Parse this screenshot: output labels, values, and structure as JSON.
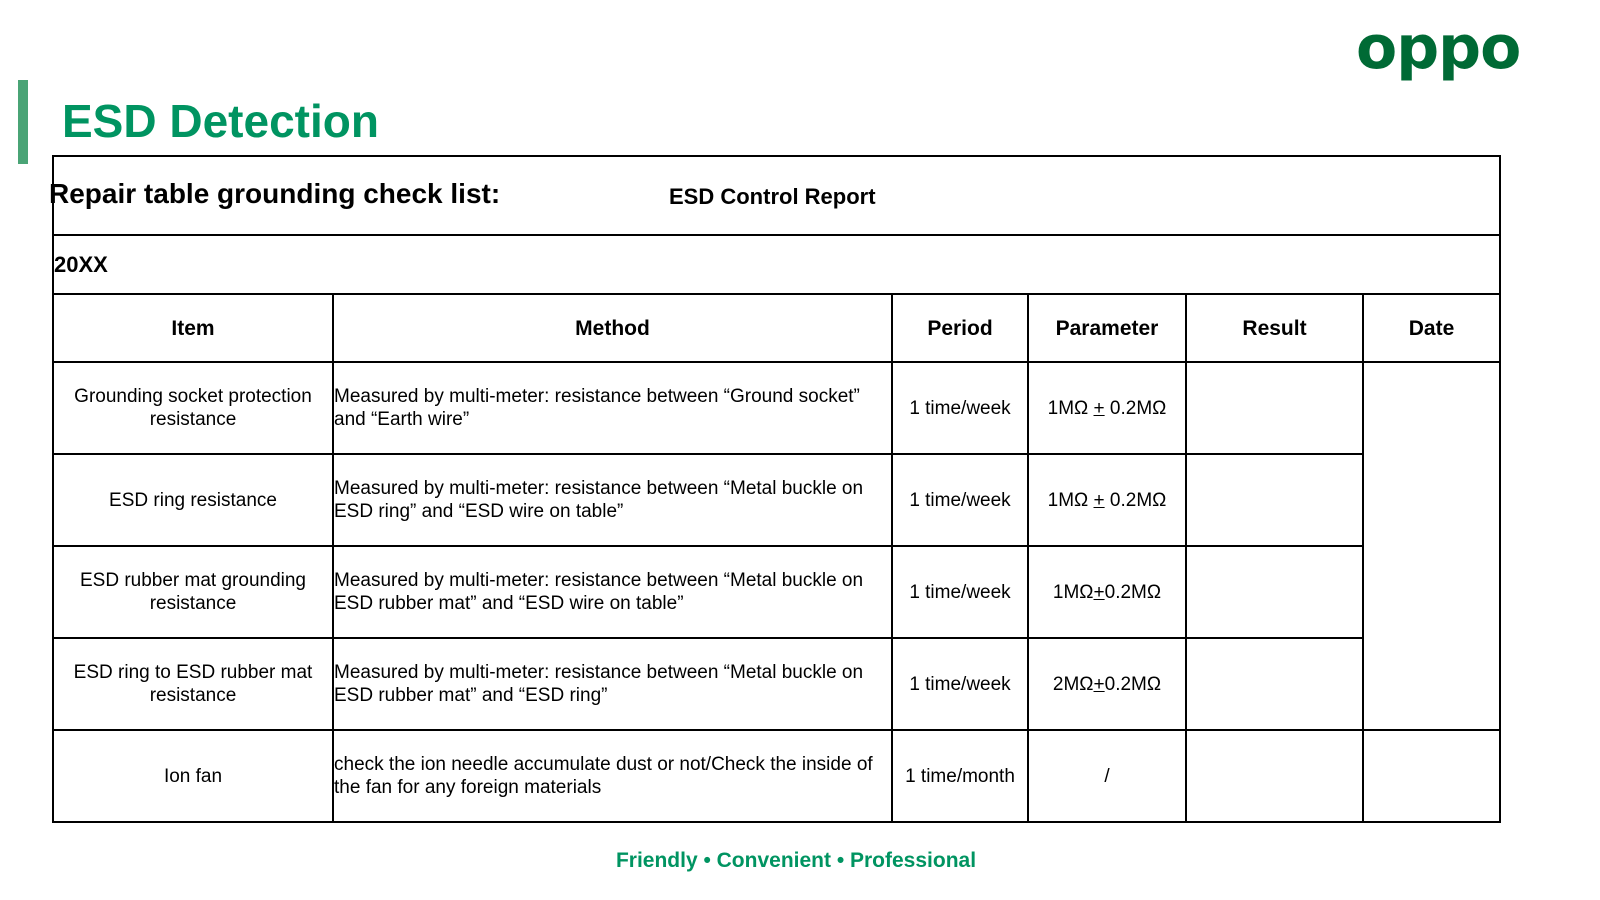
{
  "title": "ESD Detection",
  "logo": "oppo",
  "subtitle": "Repair table grounding check list:",
  "report_title": "ESD Control Report",
  "year": "20XX",
  "headers": [
    "Item",
    "Method",
    "Period",
    "Parameter",
    "Result",
    "Date"
  ],
  "rows": [
    {
      "item": "Grounding socket protection resistance",
      "method": "Measured by multi-meter: resistance between “Ground socket” and “Earth wire”",
      "period": "1 time/week",
      "param": {
        "pre": "1MΩ ",
        "sign": "+",
        "post": " 0.2MΩ"
      },
      "result": "",
      "date": ""
    },
    {
      "item": "ESD ring resistance",
      "method": "Measured by multi-meter: resistance between “Metal buckle on ESD ring” and “ESD wire on table”",
      "period": "1 time/week",
      "param": {
        "pre": "1MΩ ",
        "sign": "+",
        "post": " 0.2MΩ"
      },
      "result": "",
      "date": ""
    },
    {
      "item": "ESD rubber mat grounding resistance",
      "method": "Measured by multi-meter: resistance between “Metal buckle on ESD rubber mat” and “ESD wire on table”",
      "period": "1 time/week",
      "param": {
        "pre": "1MΩ",
        "sign": "+",
        "post": "0.2MΩ"
      },
      "result": "",
      "date": ""
    },
    {
      "item": "ESD ring to ESD rubber mat resistance",
      "method": "Measured by multi-meter: resistance between “Metal buckle on ESD rubber mat” and “ESD ring”",
      "period": "1 time/week",
      "param": {
        "pre": "2MΩ",
        "sign": "+",
        "post": "0.2MΩ"
      },
      "result": "",
      "date": ""
    },
    {
      "item": "Ion fan",
      "method": "check the ion needle accumulate dust or not/Check the inside of the fan for any foreign materials",
      "period": "1 time/month",
      "param": {
        "pre": "/",
        "sign": "",
        "post": ""
      },
      "result": "",
      "date": ""
    }
  ],
  "footer": "Friendly • Convenient • Professional",
  "colors": {
    "accent": "#009461",
    "logo": "#006a35",
    "bar": "#4aa476"
  }
}
